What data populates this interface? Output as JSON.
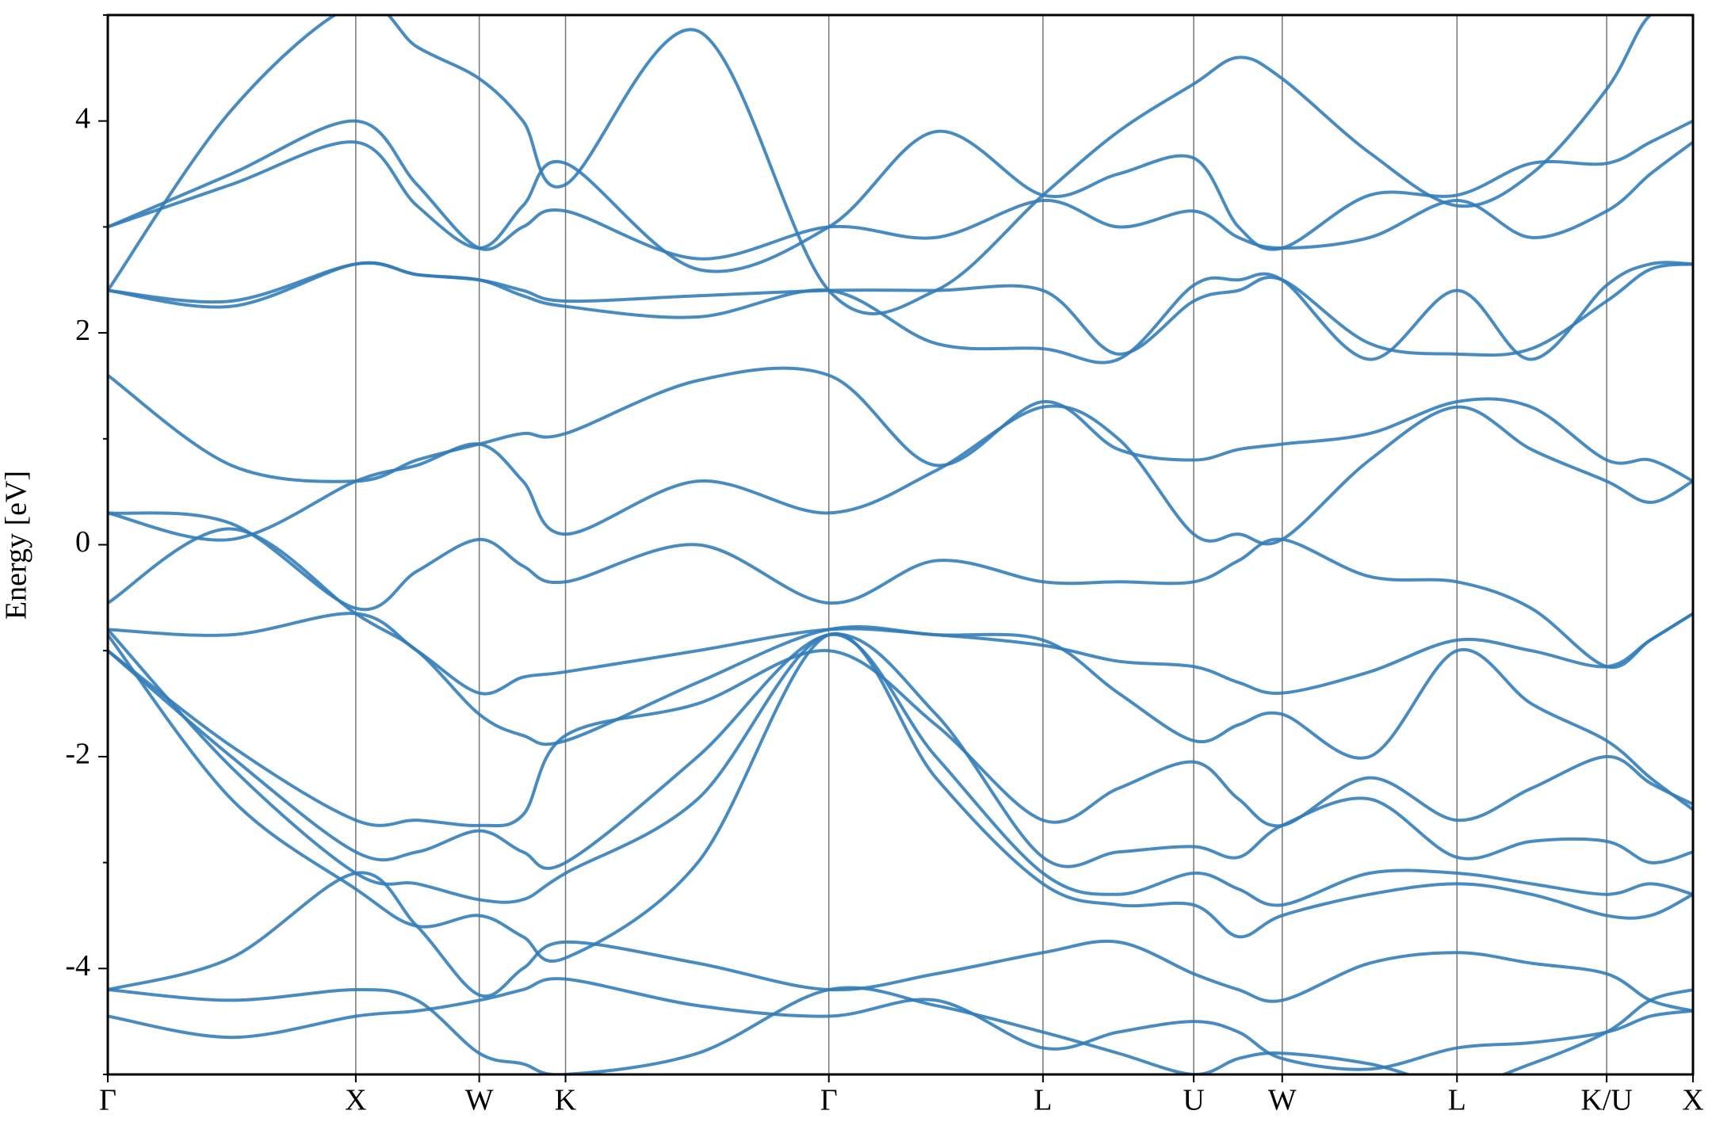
{
  "chart_data": {
    "type": "band-structure",
    "y_label": "Energy [eV]",
    "x": [
      0,
      1.13,
      2.27,
      2.83,
      3.4,
      3.8,
      4.19,
      5.4,
      6.6,
      7.58,
      8.56,
      9.25,
      9.94,
      10.35,
      10.75,
      11.55,
      12.35,
      13.03,
      13.72,
      14.12,
      14.51
    ],
    "xlim": [
      0,
      14.51
    ],
    "xticks": [
      {
        "value": 0,
        "label": "Γ"
      },
      {
        "value": 2.27,
        "label": "X"
      },
      {
        "value": 3.4,
        "label": "W"
      },
      {
        "value": 4.19,
        "label": "K"
      },
      {
        "value": 6.6,
        "label": "Γ"
      },
      {
        "value": 8.56,
        "label": "L"
      },
      {
        "value": 9.94,
        "label": "U"
      },
      {
        "value": 10.75,
        "label": "W"
      },
      {
        "value": 12.35,
        "label": "L"
      },
      {
        "value": 13.72,
        "label": "K/U"
      },
      {
        "value": 14.51,
        "label": "X"
      }
    ],
    "ylim": [
      -5,
      5
    ],
    "yticks": [
      -4,
      -2,
      0,
      2,
      4
    ],
    "yminorticks": [
      -5,
      -3,
      -1,
      1,
      3,
      5
    ],
    "color": "#2f7bb8",
    "bands": [
      [
        -4.45,
        -4.65,
        -4.45,
        -4.4,
        -4.3,
        -4.2,
        -4.1,
        -4.35,
        -4.45,
        -4.3,
        -4.75,
        -4.6,
        -4.5,
        -4.6,
        -4.85,
        -4.95,
        -4.75,
        -4.7,
        -4.6,
        -4.45,
        -4.4
      ],
      [
        -4.2,
        -4.3,
        -4.2,
        -4.3,
        -4.8,
        -4.9,
        -5.0,
        -4.8,
        -4.2,
        -4.35,
        -4.6,
        -4.8,
        -5.0,
        -4.85,
        -4.8,
        -4.9,
        -5.1,
        -4.9,
        -4.6,
        -4.3,
        -4.2
      ],
      [
        -4.2,
        -3.9,
        -3.1,
        -3.6,
        -4.25,
        -4.0,
        -3.75,
        -3.95,
        -4.2,
        -4.05,
        -3.85,
        -3.75,
        -4.05,
        -4.2,
        -4.3,
        -3.95,
        -3.85,
        -3.95,
        -4.05,
        -4.3,
        -4.4
      ],
      [
        -1.0,
        -1.9,
        -2.6,
        -2.6,
        -2.65,
        -2.55,
        -1.8,
        -1.5,
        -1.0,
        -1.7,
        -2.6,
        -2.3,
        -2.05,
        -2.4,
        -2.65,
        -2.2,
        -2.6,
        -2.3,
        -2.0,
        -2.25,
        -2.45
      ],
      [
        -1.0,
        -2.0,
        -2.9,
        -2.9,
        -2.7,
        -2.9,
        -3.0,
        -2.0,
        -0.85,
        -1.6,
        -2.95,
        -2.9,
        -2.85,
        -2.95,
        -2.65,
        -2.4,
        -2.95,
        -2.8,
        -2.8,
        -3.0,
        -2.9
      ],
      [
        -0.8,
        -2.1,
        -3.1,
        -3.2,
        -3.35,
        -3.35,
        -3.1,
        -2.4,
        -0.85,
        -2.0,
        -3.1,
        -3.3,
        -3.1,
        -3.25,
        -3.4,
        -3.1,
        -3.1,
        -3.2,
        -3.3,
        -3.2,
        -3.3
      ],
      [
        -0.85,
        -2.4,
        -3.25,
        -3.6,
        -3.5,
        -3.7,
        -3.9,
        -3.0,
        -0.85,
        -2.2,
        -3.2,
        -3.4,
        -3.4,
        -3.7,
        -3.5,
        -3.3,
        -3.2,
        -3.3,
        -3.5,
        -3.5,
        -3.3
      ],
      [
        -0.8,
        -0.85,
        -0.65,
        -1.0,
        -1.4,
        -1.25,
        -1.2,
        -1.0,
        -0.8,
        -0.85,
        -0.95,
        -1.1,
        -1.15,
        -1.3,
        -1.4,
        -1.2,
        -0.9,
        -1.0,
        -1.15,
        -0.9,
        -0.65
      ],
      [
        -0.55,
        0.15,
        -0.65,
        -1.0,
        -1.6,
        -1.8,
        -1.85,
        -1.3,
        -0.8,
        -0.85,
        -0.9,
        -1.4,
        -1.85,
        -1.7,
        -1.6,
        -2.0,
        -1.0,
        -1.5,
        -1.85,
        -2.2,
        -2.5
      ],
      [
        0.3,
        0.2,
        -0.6,
        -0.25,
        0.05,
        -0.2,
        -0.35,
        0.0,
        -0.55,
        -0.15,
        -0.35,
        -0.35,
        -0.35,
        -0.15,
        0.05,
        -0.3,
        -0.35,
        -0.6,
        -1.15,
        -0.9,
        -0.65
      ],
      [
        0.3,
        0.05,
        0.6,
        0.75,
        0.95,
        0.6,
        0.1,
        0.6,
        0.3,
        0.7,
        1.3,
        1.0,
        0.1,
        0.1,
        0.05,
        0.8,
        1.3,
        0.9,
        0.6,
        0.4,
        0.6
      ],
      [
        1.6,
        0.75,
        0.6,
        0.8,
        0.95,
        1.05,
        1.05,
        1.55,
        1.6,
        0.75,
        1.35,
        0.9,
        0.8,
        0.9,
        0.95,
        1.05,
        1.35,
        1.3,
        0.8,
        0.8,
        0.6
      ],
      [
        2.4,
        2.25,
        2.65,
        2.55,
        2.5,
        2.4,
        2.3,
        2.35,
        2.4,
        2.4,
        2.4,
        1.8,
        2.3,
        2.4,
        2.5,
        1.9,
        1.8,
        1.85,
        2.3,
        2.6,
        2.65
      ],
      [
        2.4,
        2.3,
        2.65,
        2.55,
        2.5,
        2.35,
        2.25,
        2.15,
        2.4,
        1.9,
        1.85,
        1.75,
        2.45,
        2.5,
        2.5,
        1.75,
        2.4,
        1.75,
        2.45,
        2.65,
        2.65
      ],
      [
        3.0,
        3.5,
        4.0,
        3.4,
        2.8,
        3.0,
        3.15,
        2.7,
        3.0,
        2.9,
        3.25,
        3.0,
        3.15,
        2.9,
        2.8,
        2.9,
        3.25,
        2.9,
        3.15,
        3.5,
        3.8
      ],
      [
        3.0,
        3.4,
        3.8,
        3.2,
        2.8,
        3.2,
        3.6,
        2.6,
        3.0,
        3.9,
        3.3,
        3.5,
        3.65,
        3.0,
        2.8,
        3.3,
        3.3,
        3.6,
        3.6,
        3.8,
        4.0
      ],
      [
        2.4,
        4.1,
        5.1,
        4.7,
        4.4,
        4.0,
        3.4,
        4.85,
        2.4,
        2.4,
        3.3,
        3.9,
        4.35,
        4.6,
        4.4,
        3.7,
        3.2,
        3.5,
        4.3,
        5.0,
        5.0
      ]
    ]
  }
}
